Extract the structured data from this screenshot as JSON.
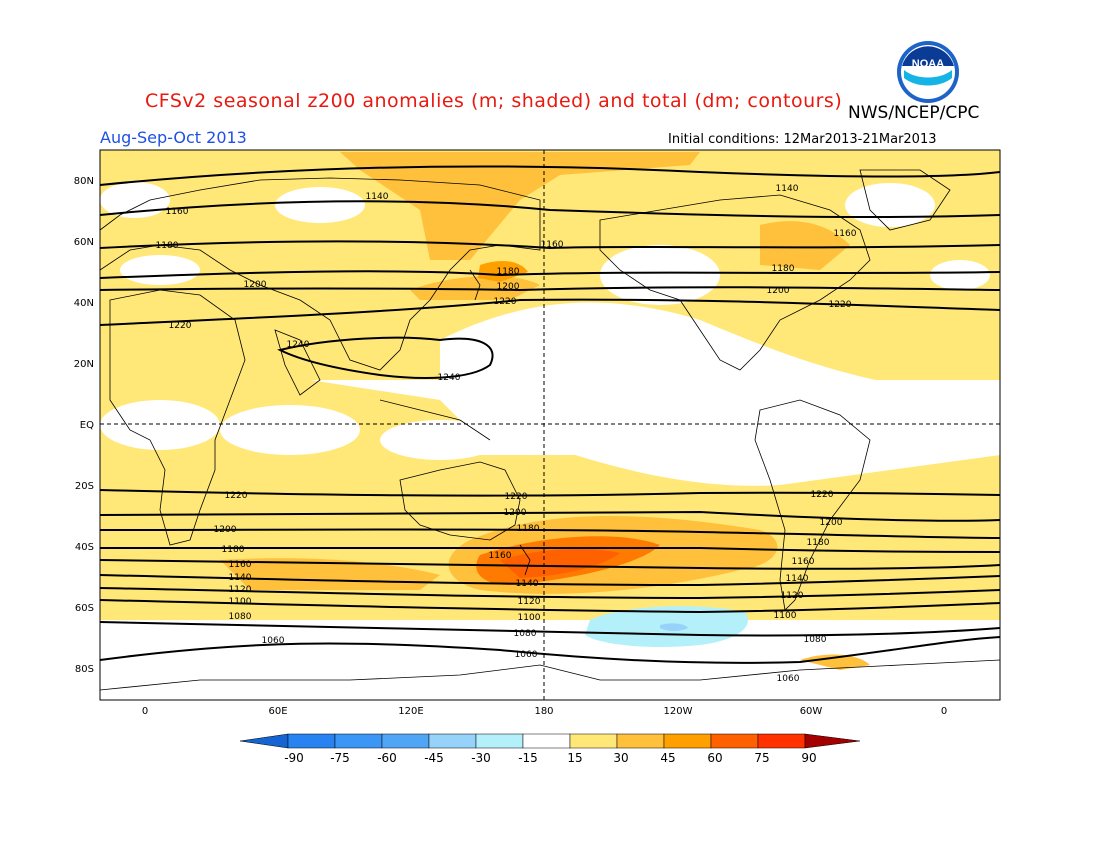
{
  "header": {
    "title": "CFSv2 seasonal z200 anomalies (m; shaded) and total (dm; contours)",
    "agency": "NWS/NCEP/CPC",
    "season": "Aug-Sep-Oct 2013",
    "initial_conditions": "Initial conditions: 12Mar2013-21Mar2013",
    "logo_text": "NOAA"
  },
  "axes": {
    "lat_labels": [
      "80N",
      "60N",
      "40N",
      "20N",
      "EQ",
      "20S",
      "40S",
      "60S",
      "80S"
    ],
    "lon_labels": [
      "0",
      "60E",
      "120E",
      "180",
      "120W",
      "60W",
      "0"
    ]
  },
  "contour_labels": [
    {
      "text": "1140",
      "lon": -40,
      "lat": 72
    },
    {
      "text": "1140",
      "lon": -86,
      "lat": 78
    },
    {
      "text": "1160",
      "lon": -27,
      "lat": 64
    },
    {
      "text": "1160",
      "lon": -36,
      "lat": 58
    },
    {
      "text": "1160",
      "lon": -24,
      "lat": 58
    },
    {
      "text": "1180",
      "lon": -31,
      "lat": 48
    },
    {
      "text": "1180",
      "lon": -15,
      "lat": 50
    },
    {
      "text": "1200",
      "lon": -42,
      "lat": 46
    },
    {
      "text": "1200",
      "lon": -18,
      "lat": 45
    },
    {
      "text": "1220",
      "lon": -8,
      "lat": 40
    },
    {
      "text": "1220",
      "lon": -14,
      "lat": 32
    },
    {
      "text": "1240",
      "lon": -3,
      "lat": 26
    },
    {
      "text": "1240",
      "lon": -44,
      "lat": 16
    }
  ],
  "colorbar": {
    "labels": [
      "-90",
      "-75",
      "-60",
      "-45",
      "-30",
      "-15",
      "15",
      "30",
      "45",
      "60",
      "75",
      "90"
    ],
    "colors": [
      "#1464d2",
      "#2882f0",
      "#50a5f5",
      "#96d2fa",
      "#b4f0fa",
      "#ffffff",
      "#ffffff",
      "#ffe878",
      "#ffc03c",
      "#ffa000",
      "#ff6000",
      "#ff3200",
      "#e11400",
      "#a50000"
    ]
  }
}
